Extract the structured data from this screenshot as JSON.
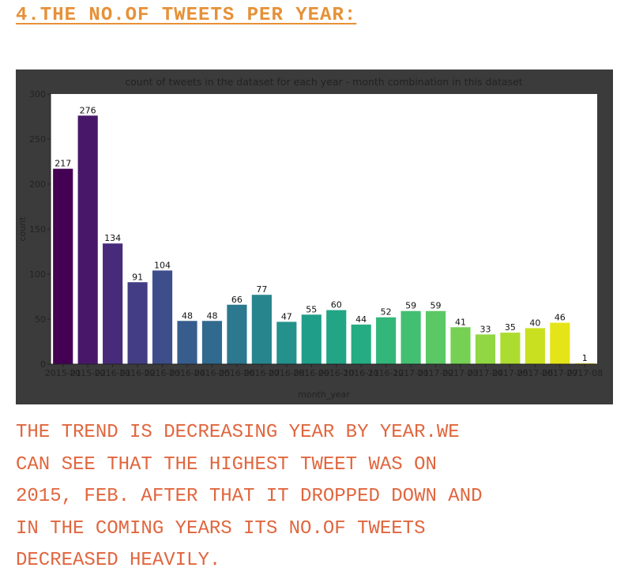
{
  "heading": "4.THE NO.OF TWEETS PER YEAR:",
  "commentary": "THE TREND IS DECREASING YEAR BY YEAR.WE\nCAN SEE THAT THE HIGHEST TWEET WAS ON\n2015, FEB. AFTER THAT IT DROPPED DOWN AND\nIN THE COMING YEARS ITS NO.OF TWEETS\nDECREASED HEAVILY.",
  "chart_data": {
    "type": "bar",
    "title": "count of tweets in the dataset for each year - month combination in this dataset",
    "xlabel": "month_year",
    "ylabel": "count",
    "ylim": [
      0,
      300
    ],
    "yticks": [
      0,
      50,
      100,
      150,
      200,
      250,
      300
    ],
    "grid": false,
    "categories": [
      "2015-01",
      "2015-02",
      "2016-01",
      "2016-02",
      "2016-03",
      "2016-04",
      "2016-05",
      "2016-06",
      "2016-07",
      "2016-08",
      "2016-09",
      "2016-10",
      "2016-11",
      "2016-12",
      "2017-01",
      "2017-02",
      "2017-03",
      "2017-04",
      "2017-05",
      "2017-06",
      "2017-07",
      "2017-08"
    ],
    "values": [
      217,
      276,
      134,
      91,
      104,
      48,
      48,
      66,
      77,
      47,
      55,
      60,
      44,
      52,
      59,
      59,
      41,
      33,
      35,
      40,
      46,
      1
    ],
    "palette": [
      "#440154",
      "#481769",
      "#472a7a",
      "#433d84",
      "#3d4e8a",
      "#365d8d",
      "#306a8e",
      "#2c788e",
      "#27858e",
      "#24918c",
      "#1f9e89",
      "#21a585",
      "#25ac82",
      "#32b67a",
      "#43bf71",
      "#5ac864",
      "#75d054",
      "#90d743",
      "#addc30",
      "#c9e020",
      "#e5e419",
      "#fde725"
    ]
  }
}
